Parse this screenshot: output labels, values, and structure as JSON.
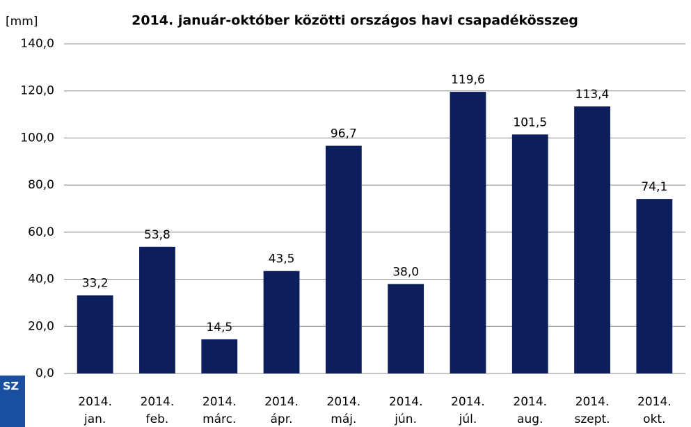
{
  "chart_data": {
    "type": "bar",
    "title": "2014. január-október közötti országos havi csapadékösszeg",
    "y_label": "[mm]",
    "logo_text": "SZ",
    "categories": [
      "2014. jan.",
      "2014. feb.",
      "2014. márc.",
      "2014. ápr.",
      "2014. máj.",
      "2014. jún.",
      "2014. júl.",
      "2014. aug.",
      "2014. szept.",
      "2014. okt."
    ],
    "values": [
      33.2,
      53.8,
      14.5,
      43.5,
      96.7,
      38.0,
      119.6,
      101.5,
      113.4,
      74.1
    ],
    "value_labels": [
      "33,2",
      "53,8",
      "14,5",
      "43,5",
      "96,7",
      "38,0",
      "119,6",
      "101,5",
      "113,4",
      "74,1"
    ],
    "color": "#0c1f5c",
    "ylim": [
      0,
      140
    ],
    "yticks": [
      {
        "value": 0,
        "label": "0,0"
      },
      {
        "value": 20,
        "label": "20,0"
      },
      {
        "value": 40,
        "label": "40,0"
      },
      {
        "value": 60,
        "label": "60,0"
      },
      {
        "value": 80,
        "label": "80,0"
      },
      {
        "value": 100,
        "label": "100,0"
      },
      {
        "value": 120,
        "label": "120,0"
      },
      {
        "value": 140,
        "label": "140,0"
      }
    ],
    "grid": true
  }
}
